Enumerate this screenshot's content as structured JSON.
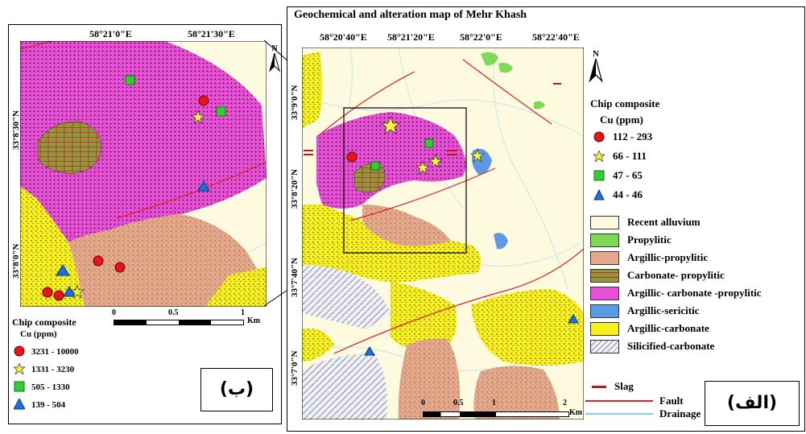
{
  "map_b": {
    "lon_ticks": [
      "58°21'0\"E",
      "58°21'30\"E"
    ],
    "lat_ticks": [
      "33°8'30\"N",
      "33°8'0\"N"
    ],
    "scale": [
      "0",
      "0.5",
      "1",
      "Km"
    ],
    "legend_title": "Chip composite",
    "legend_subtitle": "Cu (ppm)",
    "legend": [
      {
        "label": "3231 - 10000",
        "symbol": "circle",
        "color": "#e8141b"
      },
      {
        "label": "1331 - 3230",
        "symbol": "star",
        "color": "#f5f53a"
      },
      {
        "label": "505 - 1330",
        "symbol": "square",
        "color": "#33cc33"
      },
      {
        "label": "139 - 504",
        "symbol": "triangle",
        "color": "#1e6fd9"
      }
    ],
    "panel_label": "(ب)",
    "north": "N"
  },
  "map_a": {
    "title": "Geochemical and alteration map of Mehr Khash",
    "lon_ticks": [
      "58°20'40\"E",
      "58°21'20\"E",
      "58°22'0\"E",
      "58°22'40\"E"
    ],
    "lat_ticks": [
      "33°9'0\"N",
      "33°8'20\"N",
      "33°7'40\"N",
      "33°7'0\"N"
    ],
    "scale": [
      "0",
      "0.5",
      "1",
      "2",
      "Km"
    ],
    "legend_title": "Chip composite",
    "legend_subtitle": "Cu (ppm)",
    "legend": [
      {
        "label": "112 - 293",
        "symbol": "circle",
        "color": "#e8141b"
      },
      {
        "label": "66 - 111",
        "symbol": "star",
        "color": "#f5f53a"
      },
      {
        "label": "47 - 65",
        "symbol": "square",
        "color": "#33cc33"
      },
      {
        "label": "44 - 46",
        "symbol": "triangle",
        "color": "#1e6fd9"
      }
    ],
    "units": [
      {
        "label": "Recent alluvium",
        "color": "#fdfae0"
      },
      {
        "label": "Propylitic",
        "color": "#7ed957"
      },
      {
        "label": "Argillic-propylitic",
        "color": "#e6a88a"
      },
      {
        "label": "Carbonate- propylitic",
        "color": "#8c9a3a"
      },
      {
        "label": "Argillic- carbonate -propylitic",
        "color": "#e94fd6"
      },
      {
        "label": "Argillic-sericitic",
        "color": "#5b9be3"
      },
      {
        "label": "Argillic-carbonate",
        "color": "#f7f01e"
      },
      {
        "label": "Silicified-carbonate",
        "color": "#c8ccd6"
      }
    ],
    "line_legend": [
      {
        "label": "Slag",
        "color": "#b51a1a"
      },
      {
        "label": "Fault",
        "color": "#e02020"
      },
      {
        "label": "Drainage",
        "color": "#7fd3e6"
      }
    ],
    "panel_label": "(الف)",
    "north": "N"
  }
}
